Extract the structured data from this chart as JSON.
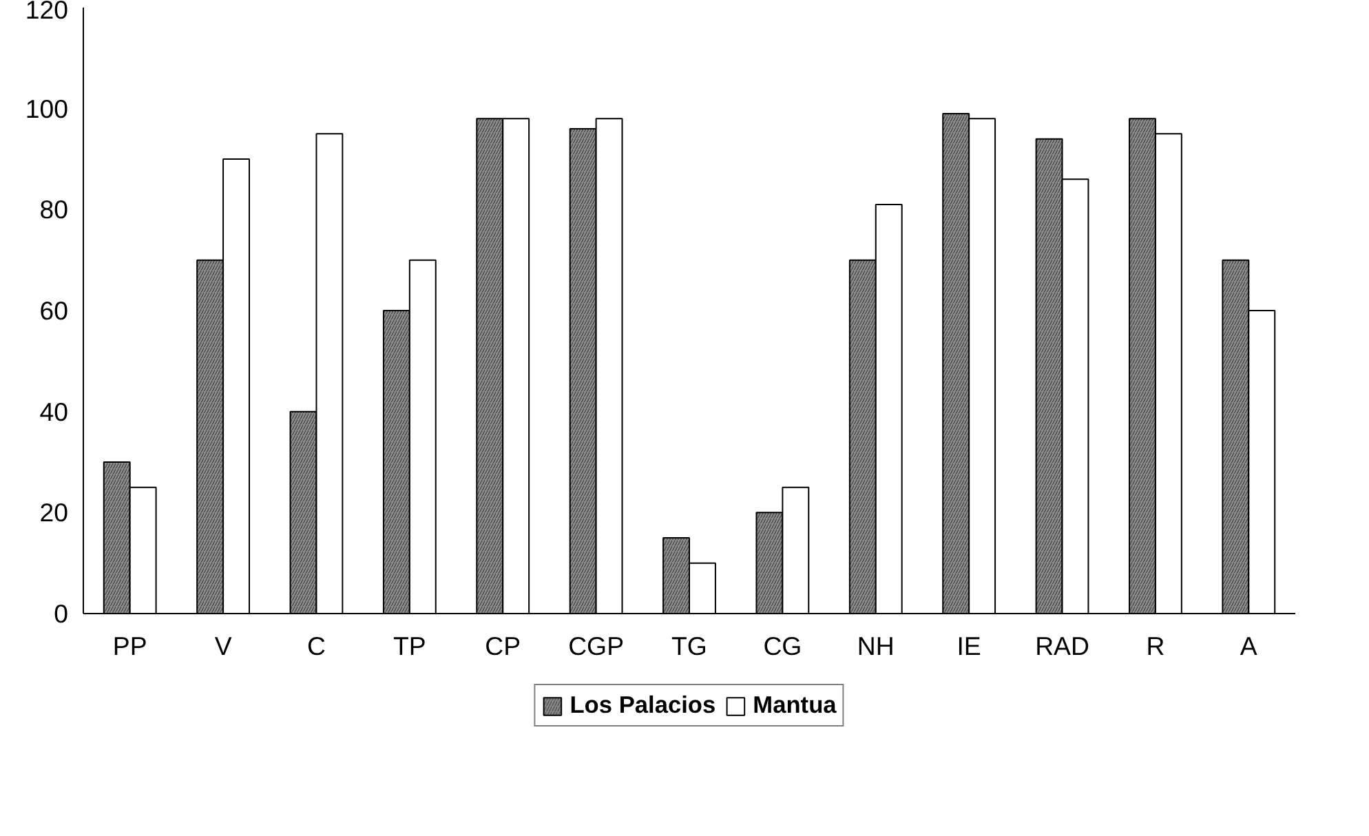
{
  "chart_data": {
    "type": "bar",
    "categories": [
      "PP",
      "V",
      "C",
      "TP",
      "CP",
      "CGP",
      "TG",
      "CG",
      "NH",
      "IE",
      "RAD",
      "R",
      "A"
    ],
    "series": [
      {
        "name": "Los Palacios",
        "color": "#8c8c8c",
        "values": [
          30,
          70,
          40,
          60,
          98,
          96,
          15,
          20,
          70,
          99,
          94,
          98,
          70
        ]
      },
      {
        "name": "Mantua",
        "color": "#ffffff",
        "values": [
          25,
          90,
          95,
          70,
          98,
          98,
          10,
          25,
          81,
          98,
          86,
          95,
          60
        ]
      }
    ],
    "ylim": [
      0,
      120
    ],
    "yticks": [
      0,
      20,
      40,
      60,
      80,
      100,
      120
    ],
    "grid": false,
    "legend": "bottom"
  }
}
